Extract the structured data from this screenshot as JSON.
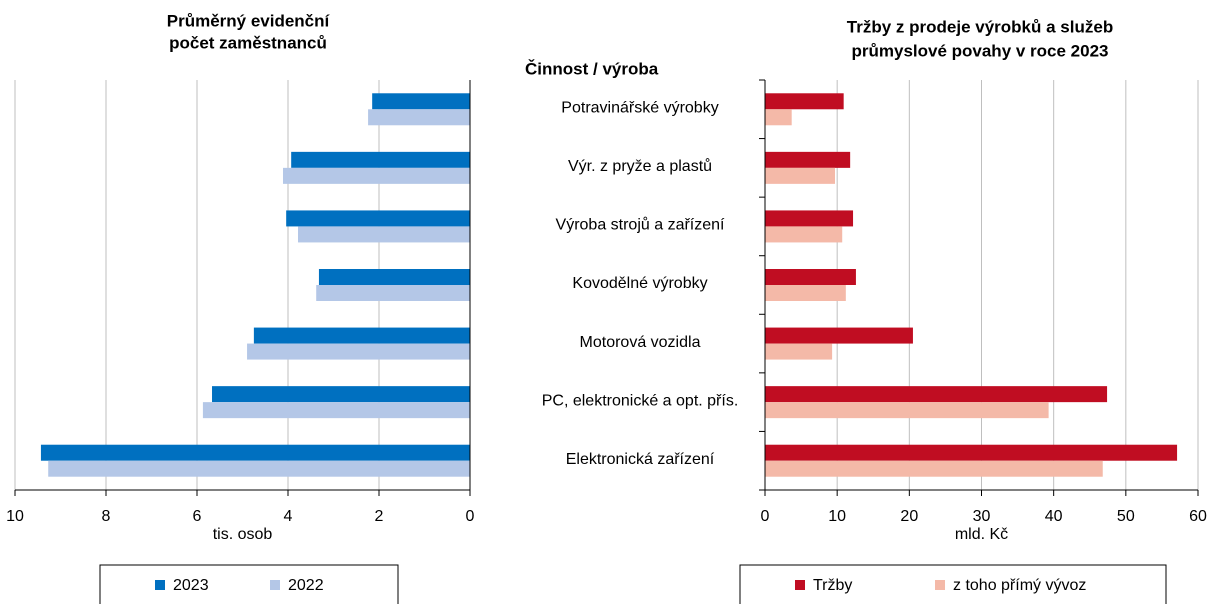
{
  "chart_data": [
    {
      "type": "bar",
      "orientation": "horizontal",
      "title": [
        "Průměrný evidenční",
        "počet zaměstnanců"
      ],
      "xlabel": "tis. osob",
      "xlim": [
        0,
        10
      ],
      "x_reversed": true,
      "xticks": [
        10,
        8,
        6,
        4,
        2,
        0
      ],
      "grid": true,
      "series": [
        {
          "name": "2023",
          "color": "#0070c0",
          "values": [
            2.15,
            3.93,
            4.04,
            3.32,
            4.75,
            5.67,
            9.43
          ]
        },
        {
          "name": "2022",
          "color": "#b4c7e7",
          "values": [
            2.24,
            4.11,
            3.78,
            3.38,
            4.9,
            5.87,
            9.27
          ]
        }
      ]
    },
    {
      "type": "bar",
      "orientation": "horizontal",
      "title": [
        "Tržby z prodeje výrobků a služeb",
        "průmyslové povahy v roce 2023"
      ],
      "category_axis_title": "Činnost / výroba",
      "categories": [
        "Potravinářské výrobky",
        "Výr. z pryže a plastů",
        "Výroba strojů a zařízení",
        "Kovodělné výrobky",
        "Motorová vozidla",
        "PC, elektronické a opt. přís.",
        "Elektronická zařízení"
      ],
      "xlabel": "mld. Kč",
      "xlim": [
        0,
        60
      ],
      "x_reversed": false,
      "xticks": [
        0,
        10,
        20,
        30,
        40,
        50,
        60
      ],
      "grid": true,
      "series": [
        {
          "name": "Tržby",
          "color": "#c00d22",
          "values": [
            10.9,
            11.8,
            12.2,
            12.6,
            20.5,
            47.4,
            57.1
          ]
        },
        {
          "name": "z toho přímý vývoz",
          "color": "#f4b9a8",
          "values": [
            3.7,
            9.7,
            10.7,
            11.2,
            9.3,
            39.3,
            46.8
          ]
        }
      ]
    }
  ]
}
